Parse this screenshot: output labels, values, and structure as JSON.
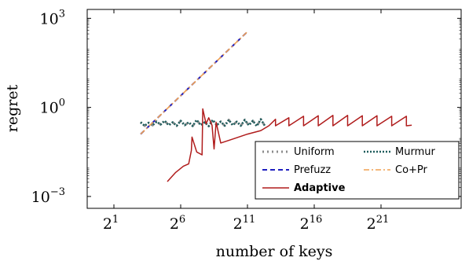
{
  "chart_data": {
    "type": "line",
    "xlabel": "number of keys",
    "ylabel": "regret",
    "x_scale": "log2",
    "y_scale": "log10",
    "xlim_log2": [
      -1,
      27
    ],
    "ylim_log10": [
      -3.4,
      3.3
    ],
    "x_ticks": [
      {
        "log2": 1,
        "label": "2",
        "exp": "1"
      },
      {
        "log2": 6,
        "label": "2",
        "exp": "6"
      },
      {
        "log2": 11,
        "label": "2",
        "exp": "11"
      },
      {
        "log2": 16,
        "label": "2",
        "exp": "16"
      },
      {
        "log2": 21,
        "label": "2",
        "exp": "21"
      }
    ],
    "y_ticks": [
      {
        "log10": 3,
        "label": "10",
        "exp": "3"
      },
      {
        "log10": 0,
        "label": "10",
        "exp": "0"
      },
      {
        "log10": -3,
        "label": "10",
        "exp": "−3"
      }
    ],
    "legend_position": "bottom-right",
    "series": [
      {
        "name": "Uniform",
        "color": "#8c8c8c",
        "dash": "2,4",
        "width": 3,
        "points": [
          [
            3,
            -0.5
          ],
          [
            3.3,
            -0.62
          ],
          [
            3.6,
            -0.52
          ],
          [
            3.9,
            -0.6
          ],
          [
            4.2,
            -0.48
          ],
          [
            4.5,
            -0.58
          ],
          [
            4.8,
            -0.45
          ],
          [
            5.1,
            -0.6
          ],
          [
            5.4,
            -0.5
          ],
          [
            5.7,
            -0.62
          ],
          [
            6.0,
            -0.45
          ],
          [
            6.3,
            -0.6
          ],
          [
            6.6,
            -0.5
          ],
          [
            6.9,
            -0.63
          ],
          [
            7.2,
            -0.42
          ],
          [
            7.5,
            -0.6
          ],
          [
            7.8,
            -0.5
          ],
          [
            8.1,
            -0.63
          ],
          [
            8.4,
            -0.42
          ],
          [
            8.7,
            -0.6
          ],
          [
            9.0,
            -0.48
          ],
          [
            9.3,
            -0.62
          ],
          [
            9.6,
            -0.42
          ],
          [
            9.9,
            -0.6
          ],
          [
            10.2,
            -0.48
          ],
          [
            10.5,
            -0.62
          ],
          [
            10.8,
            -0.42
          ],
          [
            11.1,
            -0.6
          ],
          [
            11.4,
            -0.45
          ],
          [
            11.7,
            -0.63
          ],
          [
            12.0,
            -0.4
          ],
          [
            12.3,
            -0.62
          ]
        ]
      },
      {
        "name": "Murmur",
        "color": "#1f5c5c",
        "dash": "2,2",
        "width": 2.6,
        "points": [
          [
            3,
            -0.5
          ],
          [
            3.3,
            -0.62
          ],
          [
            3.6,
            -0.52
          ],
          [
            3.9,
            -0.6
          ],
          [
            4.2,
            -0.48
          ],
          [
            4.5,
            -0.58
          ],
          [
            4.8,
            -0.45
          ],
          [
            5.1,
            -0.6
          ],
          [
            5.4,
            -0.5
          ],
          [
            5.7,
            -0.62
          ],
          [
            6.0,
            -0.45
          ],
          [
            6.3,
            -0.6
          ],
          [
            6.6,
            -0.5
          ],
          [
            6.9,
            -0.63
          ],
          [
            7.2,
            -0.42
          ],
          [
            7.5,
            -0.6
          ],
          [
            7.8,
            -0.5
          ],
          [
            8.1,
            -0.63
          ],
          [
            8.4,
            -0.42
          ],
          [
            8.7,
            -0.6
          ],
          [
            9.0,
            -0.48
          ],
          [
            9.3,
            -0.62
          ],
          [
            9.6,
            -0.42
          ],
          [
            9.9,
            -0.6
          ],
          [
            10.2,
            -0.48
          ],
          [
            10.5,
            -0.62
          ],
          [
            10.8,
            -0.42
          ],
          [
            11.1,
            -0.6
          ],
          [
            11.4,
            -0.45
          ],
          [
            11.7,
            -0.63
          ],
          [
            12.0,
            -0.4
          ],
          [
            12.3,
            -0.62
          ]
        ]
      },
      {
        "name": "Prefuzz",
        "color": "#1f1fbf",
        "dash": "6,4",
        "width": 2,
        "points": [
          [
            3,
            -0.9
          ],
          [
            11,
            2.55
          ]
        ]
      },
      {
        "name": "Co+Pr",
        "color": "#f0a050",
        "dash": "7,3,2,3",
        "width": 1.6,
        "points": [
          [
            3,
            -0.9
          ],
          [
            11,
            2.55
          ]
        ]
      },
      {
        "name": "Adaptive",
        "color": "#b01c1c",
        "dash": "",
        "width": 1.5,
        "bold_label": true,
        "points": [
          [
            5,
            -2.5
          ],
          [
            5.6,
            -2.2
          ],
          [
            6.2,
            -1.98
          ],
          [
            6.6,
            -1.9
          ],
          [
            6.8,
            -1.45
          ],
          [
            6.85,
            -1.0
          ],
          [
            7.2,
            -1.5
          ],
          [
            7.6,
            -1.6
          ],
          [
            7.65,
            -0.05
          ],
          [
            7.9,
            -0.55
          ],
          [
            8.1,
            -0.35
          ],
          [
            8.35,
            -0.6
          ],
          [
            8.5,
            -1.4
          ],
          [
            8.65,
            -0.5
          ],
          [
            9.0,
            -1.2
          ],
          [
            10,
            -1.05
          ],
          [
            11,
            -0.9
          ],
          [
            12,
            -0.78
          ],
          [
            12.6,
            -0.62
          ],
          [
            13.1,
            -0.4
          ],
          [
            13.1,
            -0.62
          ],
          [
            14.1,
            -0.35
          ],
          [
            14.1,
            -0.62
          ],
          [
            15.2,
            -0.3
          ],
          [
            15.2,
            -0.62
          ],
          [
            16.3,
            -0.28
          ],
          [
            16.3,
            -0.62
          ],
          [
            17.4,
            -0.27
          ],
          [
            17.4,
            -0.62
          ],
          [
            18.5,
            -0.27
          ],
          [
            18.5,
            -0.62
          ],
          [
            19.6,
            -0.28
          ],
          [
            19.6,
            -0.62
          ],
          [
            20.7,
            -0.28
          ],
          [
            20.7,
            -0.62
          ],
          [
            21.8,
            -0.3
          ],
          [
            21.8,
            -0.62
          ],
          [
            22.9,
            -0.3
          ],
          [
            22.9,
            -0.62
          ],
          [
            23.3,
            -0.6
          ]
        ]
      }
    ]
  }
}
